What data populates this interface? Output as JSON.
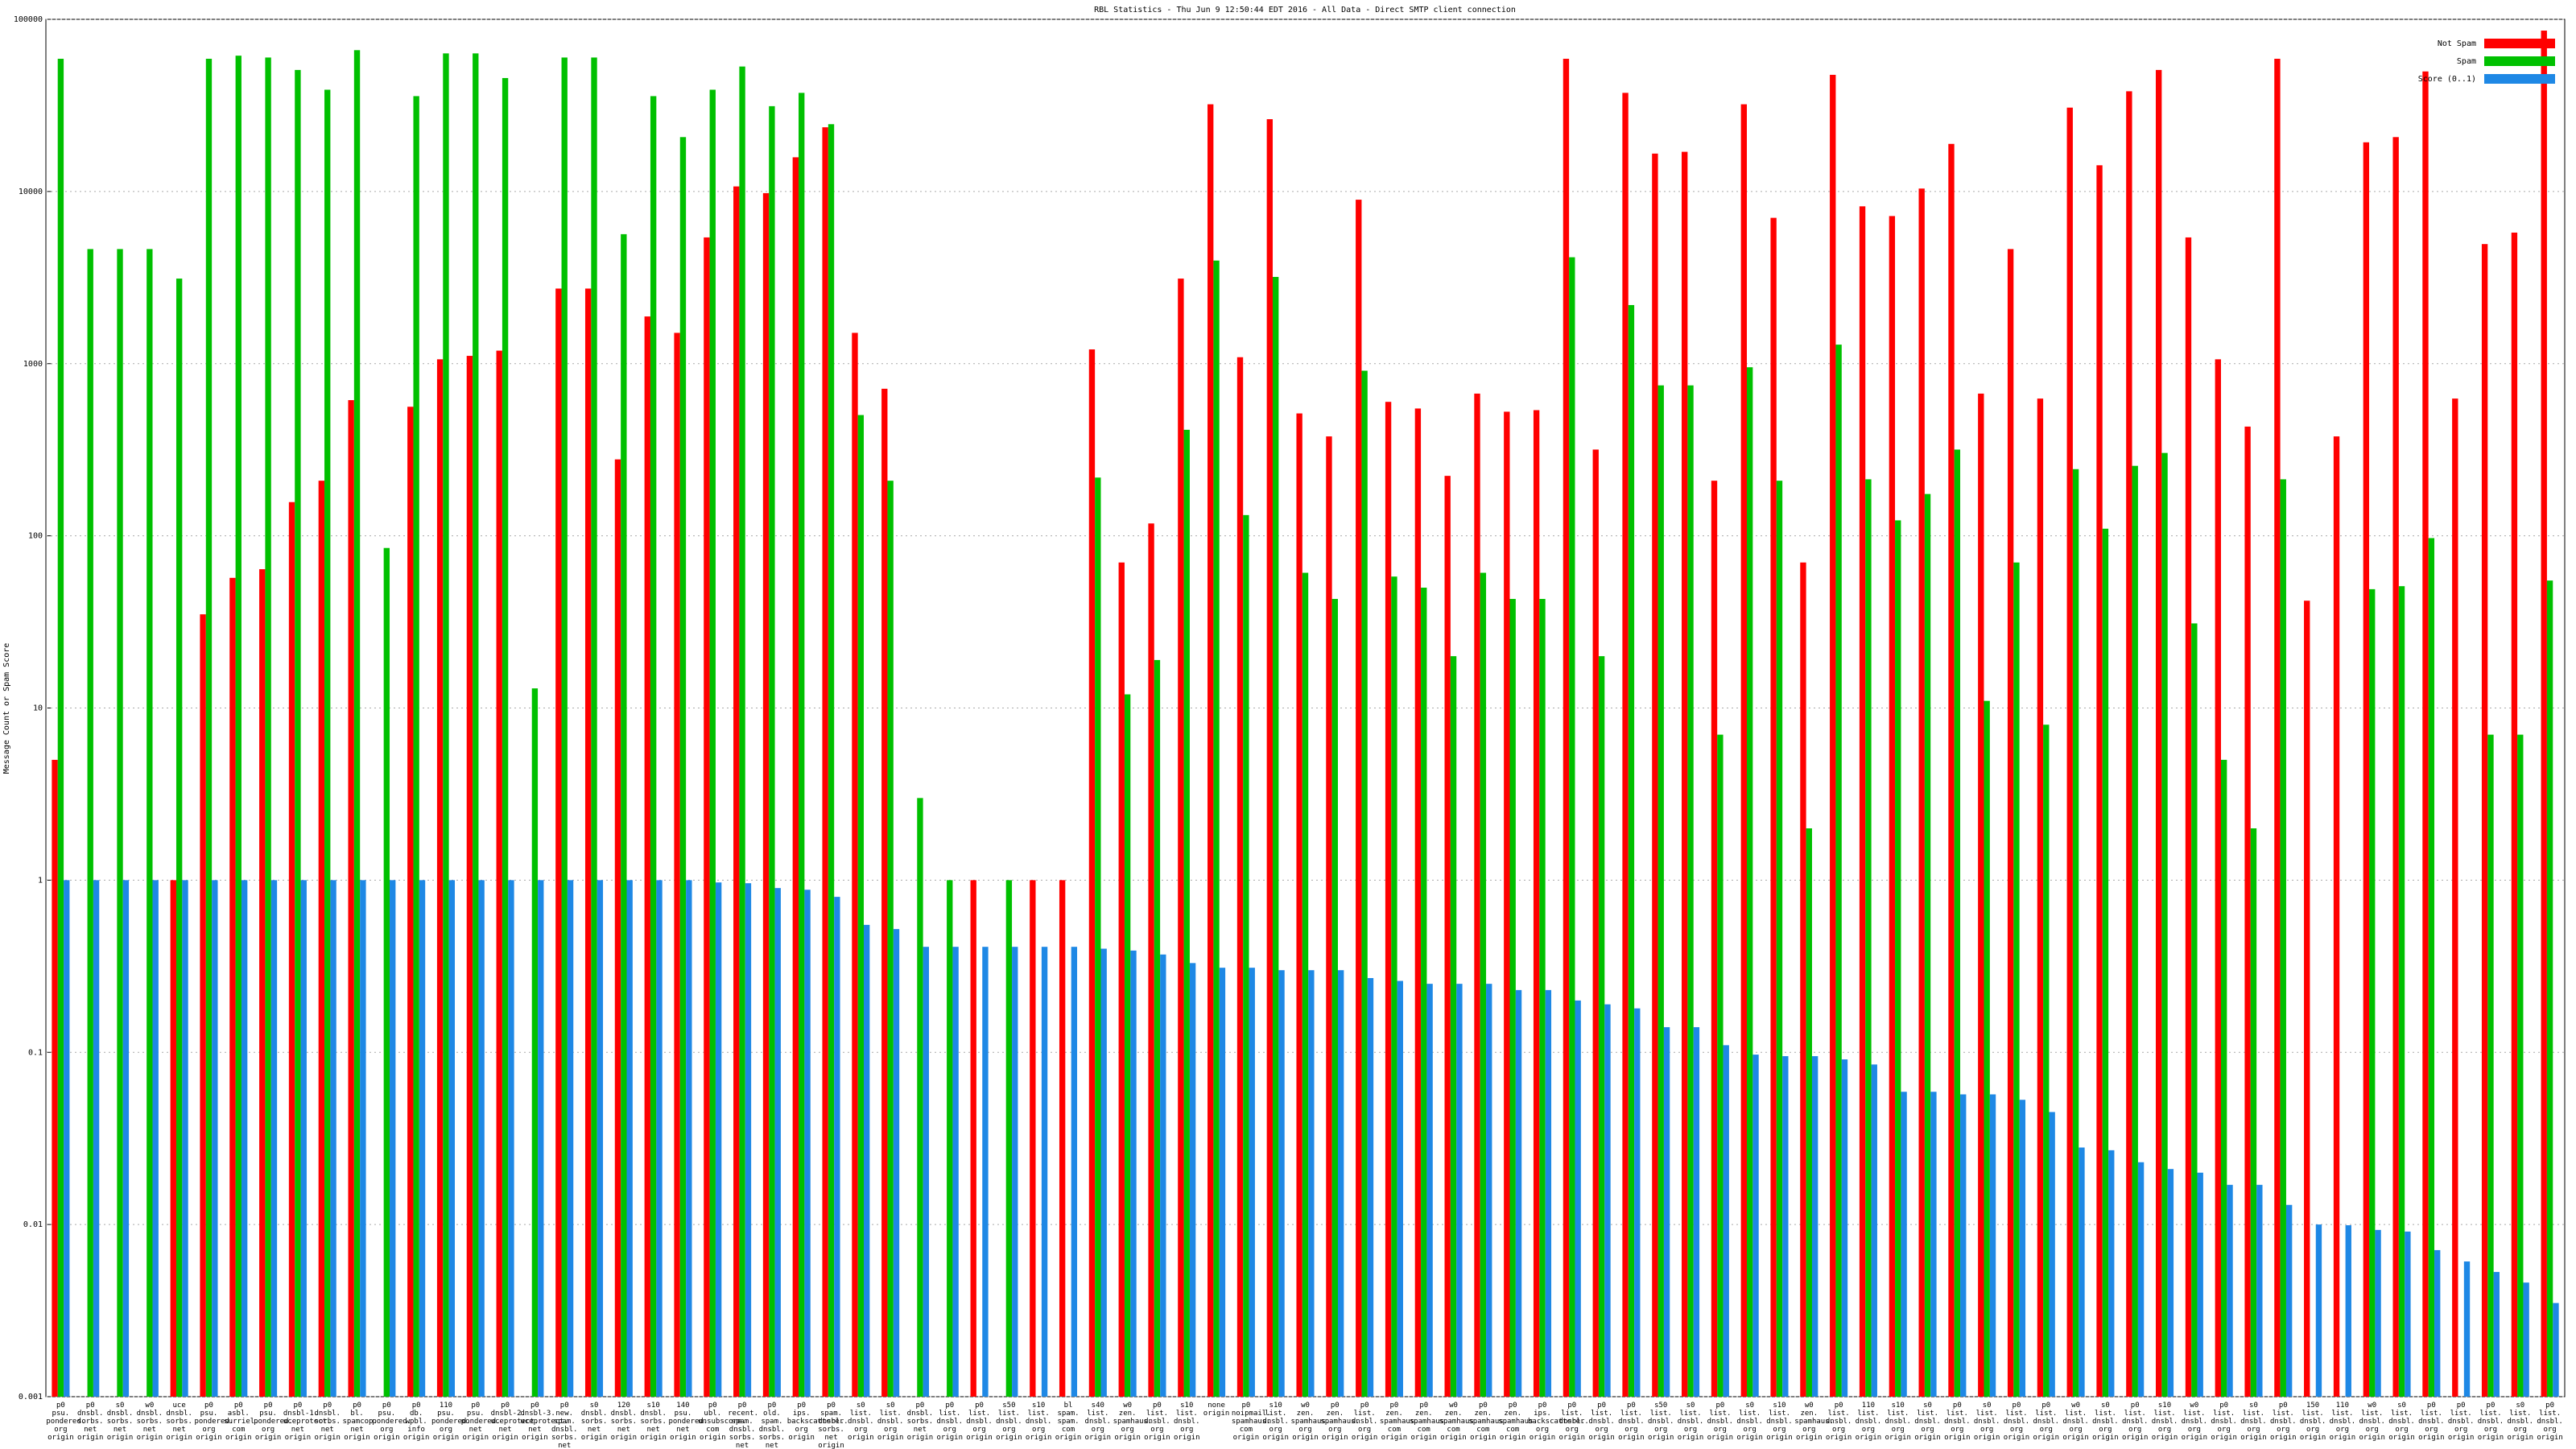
{
  "chart_data": {
    "type": "bar",
    "title": "RBL Statistics - Thu Jun  9 12:50:44 EDT 2016 - All Data - Direct SMTP client connection",
    "y_label": "Message Count or Spam Score",
    "log_scale": true,
    "grid": true,
    "legend": "upper right",
    "ylim": [
      0.001,
      100000
    ],
    "yticks": [
      0.001,
      0.01,
      0.1,
      1,
      10,
      100,
      1000,
      10000,
      100000
    ],
    "categories": [
      "p0\npsu.\npondered.\norg\norigin",
      "p0\ndnsbl.\nsorbs.\nnet\norigin",
      "s0\ndnsbl.\nsorbs.\nnet\norigin",
      "w0\ndnsbl.\nsorbs.\nnet\norigin",
      "uce\ndnsbl.\nsorbs.\nnet\norigin",
      "p0\npsu.\npondered.\norg\norigin",
      "p0\nasbl.\nsurriel.\ncom\norigin",
      "p0\npsu.\npondered.\norg\norigin",
      "p0\ndnsbl-1.\nuceprotect.\nnet\norigin",
      "p0\ndnsbl.\nsorbs.\nnet\norigin",
      "p0\nbl.\nspamcop.\nnet\norigin",
      "p0\npsu.\npondered.\norg\norigin",
      "p0\ndb.\nwpbl.\ninfo\norigin",
      "110\npsu.\npondered.\norg\norigin",
      "p0\npsu.\npondered.\nnet\norigin",
      "p0\ndnsbl-2.\nuceprotect.\nnet\norigin",
      "p0\ndnsbl-3.\nuceprotect.\nnet\norigin",
      "p0\nnew.\nspam.\ndnsbl.\nsorbs.\nnet\norigin",
      "s0\ndnsbl.\nsorbs.\nnet\norigin",
      "120\ndnsbl.\nsorbs.\nnet\norigin",
      "s10\ndnsbl.\nsorbs.\nnet\norigin",
      "140\npsu.\npondered.\nnet\norigin",
      "p0\nubl.\nunsubscore.\ncom\norigin",
      "p0\nrecent.\nspam.\ndnsbl.\nsorbs.\nnet\norigin",
      "p0\nold.\nspam.\ndnsbl.\nsorbs.\nnet\norigin",
      "p0\nips.\nbackscatterer.\norg\norigin",
      "p0\nspam.\ndnsbl.\nsorbs.\nnet\norigin",
      "s0\nlist.\ndnsbl.\norg\norigin",
      "s0\nlist.\ndnsbl.\norg\norigin",
      "p0\ndnsbl.\nsorbs.\nnet\norigin",
      "p0\nlist.\ndnsbl.\norg\norigin",
      "p0\nlist.\ndnsbl.\norg\norigin",
      "s50\nlist.\ndnsbl.\norg\norigin",
      "s10\nlist.\ndnsbl.\norg\norigin",
      "bl\nspam.\nspam.\ncom\norigin",
      "s40\nlist.\ndnsbl.\norg\norigin",
      "w0\nzen.\nspamhaus.\norg\norigin",
      "p0\nlist.\ndnsbl.\norg\norigin",
      "s10\nlist.\ndnsbl.\norg\norigin",
      "none\norigin",
      "p0\nnoipmail.\nspamhaus.\ncom\norigin",
      "s10\nlist.\ndnsbl.\norg\norigin",
      "w0\nzen.\nspamhaus.\norg\norigin",
      "p0\nzen.\nspamhaus.\norg\norigin",
      "p0\nlist.\ndnsbl.\norg\norigin",
      "p0\nzen.\nspamhaus.\ncom\norigin",
      "p0\nzen.\nspamhaus.\ncom\norigin",
      "w0\nzen.\nspamhaus.\ncom\norigin",
      "p0\nzen.\nspamhaus.\ncom\norigin",
      "p0\nzen.\nspamhaus.\ncom\norigin",
      "p0\nips.\nbackscatterer.\norg\norigin",
      "p0\nlist.\ndnsbl.\norg\norigin",
      "p0\nlist.\ndnsbl.\norg\norigin",
      "p0\nlist.\ndnsbl.\norg\norigin",
      "s50\nlist.\ndnsbl.\norg\norigin",
      "s0\nlist.\ndnsbl.\norg\norigin",
      "p0\nlist.\ndnsbl.\norg\norigin",
      "s0\nlist.\ndnsbl.\norg\norigin",
      "s10\nlist.\ndnsbl.\norg\norigin",
      "w0\nzen.\nspamhaus.\norg\norigin",
      "p0\nlist.\ndnsbl.\norg\norigin",
      "110\nlist.\ndnsbl.\norg\norigin",
      "s10\nlist.\ndnsbl.\norg\norigin",
      "s0\nlist.\ndnsbl.\norg\norigin",
      "p0\nlist.\ndnsbl.\norg\norigin",
      "s0\nlist.\ndnsbl.\norg\norigin",
      "p0\nlist.\ndnsbl.\norg\norigin",
      "p0\nlist.\ndnsbl.\norg\norigin",
      "w0\nlist.\ndnsbl.\norg\norigin",
      "s0\nlist.\ndnsbl.\norg\norigin",
      "p0\nlist.\ndnsbl.\norg\norigin",
      "s10\nlist.\ndnsbl.\norg\norigin",
      "w0\nlist.\ndnsbl.\norg\norigin",
      "p0\nlist.\ndnsbl.\norg\norigin",
      "s0\nlist.\ndnsbl.\norg\norigin",
      "p0\nlist.\ndnsbl.\norg\norigin",
      "150\nlist.\ndnsbl.\norg\norigin",
      "110\nlist.\ndnsbl.\norg\norigin",
      "w0\nlist.\ndnsbl.\norg\norigin",
      "s0\nlist.\ndnsbl.\norg\norigin",
      "p0\nlist.\ndnsbl.\norg\norigin",
      "p0\nlist.\ndnsbl.\norg\norigin",
      "p0\nlist.\ndnsbl.\norg\norigin",
      "s0\nlist.\ndnsbl.\norg\norigin",
      "p0\nlist.\ndnsbl.\norg\norigin"
    ],
    "series": [
      {
        "name": "Not Spam",
        "color": "#ff0000",
        "values": [
          5,
          null,
          null,
          null,
          1,
          35,
          57,
          64,
          157,
          209,
          614,
          null,
          562,
          1060,
          1110,
          1190,
          null,
          2730,
          2730,
          278,
          1880,
          1510,
          5410,
          10700,
          9780,
          15800,
          23600,
          1510,
          715,
          null,
          null,
          1,
          null,
          1,
          1,
          1210,
          70,
          118,
          3120,
          32100,
          1090,
          26300,
          514,
          378,
          8960,
          600,
          549,
          223,
          670,
          526,
          537,
          59000,
          317,
          37400,
          16600,
          17000,
          209,
          32100,
          7030,
          70,
          47600,
          8200,
          7200,
          10400,
          18900,
          670,
          4630,
          627,
          30700,
          14200,
          38200,
          50800,
          5410,
          1060,
          431,
          59000,
          42,
          378,
          19300,
          20700,
          49800,
          627,
          4950,
          5770,
          86000
        ]
      },
      {
        "name": "Spam",
        "color": "#00c000",
        "values": [
          59000,
          4630,
          4630,
          4630,
          3120,
          59000,
          61500,
          60000,
          50800,
          39000,
          66200,
          85,
          35800,
          63400,
          63400,
          45600,
          13,
          60000,
          60000,
          5650,
          35800,
          20700,
          39000,
          53200,
          31300,
          37400,
          24600,
          503,
          209,
          3,
          1,
          null,
          1,
          null,
          null,
          218,
          12,
          19,
          413,
          3970,
          132,
          3190,
          61,
          43,
          910,
          58,
          50,
          20,
          61,
          43,
          43,
          4150,
          20,
          2190,
          748,
          748,
          7,
          953,
          209,
          2,
          1290,
          213,
          123,
          175,
          317,
          11,
          70,
          8,
          244,
          110,
          255,
          303,
          31,
          5,
          2,
          213,
          null,
          null,
          49,
          51,
          97,
          null,
          7,
          7,
          55
        ]
      },
      {
        "name": "Score (0..1)",
        "color": "#1e88e5",
        "values": [
          1,
          1,
          1,
          1,
          1,
          1,
          1,
          1,
          1,
          1,
          1,
          1,
          1,
          1,
          1,
          1,
          1,
          1,
          1,
          1,
          1,
          1,
          0.97,
          0.96,
          0.9,
          0.88,
          0.8,
          0.55,
          0.52,
          0.41,
          0.41,
          0.41,
          0.41,
          0.41,
          0.41,
          0.4,
          0.39,
          0.37,
          0.33,
          0.31,
          0.31,
          0.3,
          0.3,
          0.3,
          0.27,
          0.26,
          0.25,
          0.25,
          0.25,
          0.23,
          0.23,
          0.2,
          0.19,
          0.18,
          0.14,
          0.14,
          0.11,
          0.097,
          0.095,
          0.095,
          0.091,
          0.085,
          0.059,
          0.059,
          0.057,
          0.057,
          0.053,
          0.045,
          0.028,
          0.027,
          0.023,
          0.021,
          0.02,
          0.017,
          0.017,
          0.013,
          0.01,
          0.0099,
          0.0093,
          0.0091,
          0.0071,
          0.0061,
          0.0053,
          0.0046,
          0.0035
        ]
      }
    ]
  }
}
